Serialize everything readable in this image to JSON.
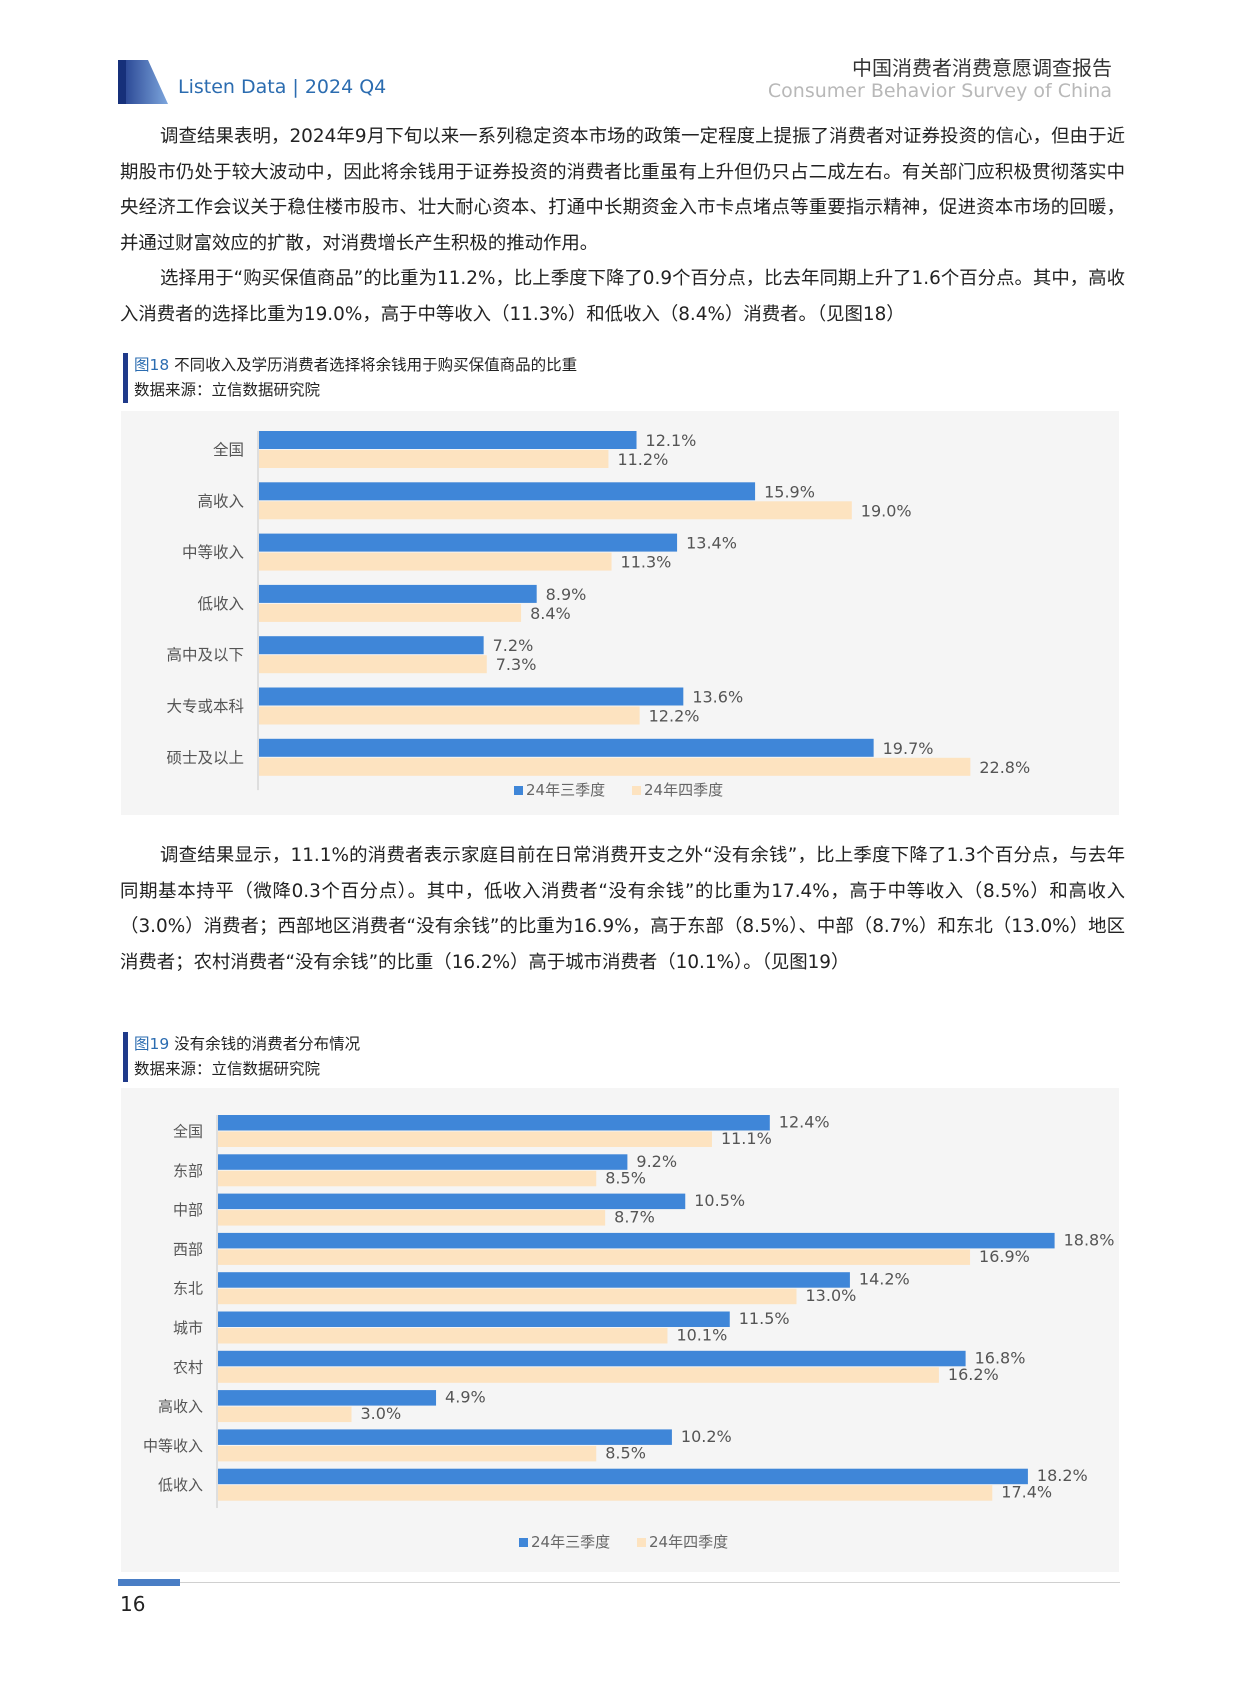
{
  "header": {
    "brand": "Listen Data | 2024 Q4",
    "title": "中国消费者消费意愿调查报告",
    "subtitle": "Consumer Behavior Survey of China"
  },
  "paragraphs_top": [
    "调查结果表明，2024年9月下旬以来一系列稳定资本市场的政策一定程度上提振了消费者对证券投资的信心，但由于近期股市仍处于较大波动中，因此将余钱用于证券投资的消费者比重虽有上升但仍只占二成左右。有关部门应积极贯彻落实中央经济工作会议关于稳住楼市股市、壮大耐心资本、打通中长期资金入市卡点堵点等重要指示精神，促进资本市场的回暖，并通过财富效应的扩散，对消费增长产生积极的推动作用。",
    "选择用于“购买保值商品”的比重为11.2%，比上季度下降了0.9个百分点，比去年同期上升了1.6个百分点。其中，高收入消费者的选择比重为19.0%，高于中等收入（11.3%）和低收入（8.4%）消费者。（见图18）"
  ],
  "fig18": {
    "number": "图18",
    "title": "不同收入及学历消费者选择将余钱用于购买保值商品的比重",
    "source": "数据来源：立信数据研究院"
  },
  "paragraphs_mid": [
    "调查结果显示，11.1%的消费者表示家庭目前在日常消费开支之外“没有余钱”，比上季度下降了1.3个百分点，与去年同期基本持平（微降0.3个百分点）。其中，低收入消费者“没有余钱”的比重为17.4%，高于中等收入（8.5%）和高收入（3.0%）消费者；西部地区消费者“没有余钱”的比重为16.9%，高于东部（8.5%）、中部（8.7%）和东北（13.0%）地区消费者；农村消费者“没有余钱”的比重（16.2%）高于城市消费者（10.1%）。（见图19）"
  ],
  "fig19": {
    "number": "图19",
    "title": "没有余钱的消费者分布情况",
    "source": "数据来源：立信数据研究院"
  },
  "chart_data": [
    {
      "type": "bar",
      "orientation": "horizontal",
      "categories": [
        "全国",
        "高收入",
        "中等收入",
        "低收入",
        "高中及以下",
        "大专或本科",
        "硕士及以上"
      ],
      "series": [
        {
          "name": "24年三季度",
          "values": [
            12.1,
            15.9,
            13.4,
            8.9,
            7.2,
            13.6,
            19.7
          ],
          "color": "#3f86d8"
        },
        {
          "name": "24年四季度",
          "values": [
            11.2,
            19.0,
            11.3,
            8.4,
            7.3,
            12.2,
            22.8
          ],
          "color": "#fde3c0"
        }
      ],
      "value_format": "%",
      "legend": "bottom-center",
      "grid": false
    },
    {
      "type": "bar",
      "orientation": "horizontal",
      "categories": [
        "全国",
        "东部",
        "中部",
        "西部",
        "东北",
        "城市",
        "农村",
        "高收入",
        "中等收入",
        "低收入"
      ],
      "series": [
        {
          "name": "24年三季度",
          "values": [
            12.4,
            9.2,
            10.5,
            18.8,
            14.2,
            11.5,
            16.8,
            4.9,
            10.2,
            18.2
          ],
          "color": "#3f86d8"
        },
        {
          "name": "24年四季度",
          "values": [
            11.1,
            8.5,
            8.7,
            16.9,
            13.0,
            10.1,
            16.2,
            3.0,
            8.5,
            17.4
          ],
          "color": "#fde3c0"
        }
      ],
      "value_format": "%",
      "legend": "bottom-center",
      "grid": false
    }
  ],
  "footer": {
    "page_number": "16"
  }
}
